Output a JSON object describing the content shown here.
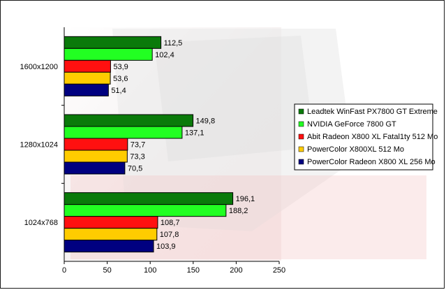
{
  "chart_data": {
    "type": "bar",
    "orientation": "horizontal",
    "categories": [
      "1600x1200",
      "1280x1024",
      "1024x768"
    ],
    "series": [
      {
        "name": "Leadtek WinFast PX7800 GT Extreme",
        "color": "#0a7a0a",
        "values": [
          112.5,
          149.8,
          196.1
        ],
        "labels": [
          "112,5",
          "149,8",
          "196,1"
        ]
      },
      {
        "name": "NVIDIA GeForce 7800 GT",
        "color": "#22ff22",
        "values": [
          102.4,
          137.1,
          188.2
        ],
        "labels": [
          "102,4",
          "137,1",
          "188,2"
        ]
      },
      {
        "name": "Abit Radeon X800 XL Fatal1ty 512 Mo",
        "color": "#ff1010",
        "values": [
          53.9,
          73.7,
          108.7
        ],
        "labels": [
          "53,9",
          "73,7",
          "108,7"
        ]
      },
      {
        "name": "PowerColor X800XL 512 Mo",
        "color": "#ffcc00",
        "values": [
          53.6,
          73.3,
          107.8
        ],
        "labels": [
          "53,6",
          "73,3",
          "107,8"
        ]
      },
      {
        "name": "PowerColor Radeon X800 XL 256 Mo",
        "color": "#000080",
        "values": [
          51.4,
          70.5,
          103.9
        ],
        "labels": [
          "51,4",
          "70,5",
          "103,9"
        ]
      }
    ],
    "xlim": [
      0,
      250
    ],
    "xticks": [
      "0",
      "50",
      "100",
      "150",
      "200",
      "250"
    ],
    "title": "",
    "xlabel": "",
    "ylabel": "",
    "grid": false,
    "legend_position": "right"
  }
}
